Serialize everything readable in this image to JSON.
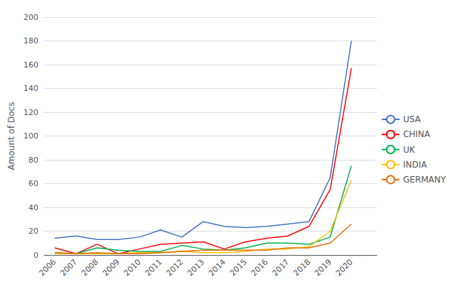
{
  "chart_data": {
    "type": "line",
    "ylabel": "Amount of Docs",
    "x": [
      2006,
      2007,
      2008,
      2009,
      2010,
      2011,
      2012,
      2013,
      2014,
      2015,
      2016,
      2017,
      2018,
      2019,
      2020
    ],
    "series": [
      {
        "name": "USA",
        "color": "#4472C4",
        "values": [
          14,
          16,
          13,
          13,
          15,
          21,
          15,
          28,
          24,
          23,
          24,
          26,
          28,
          65,
          180
        ]
      },
      {
        "name": "CHINA",
        "color": "#FF0000",
        "values": [
          6,
          1,
          9,
          1,
          5,
          9,
          10,
          11,
          5,
          11,
          14,
          16,
          24,
          55,
          157
        ]
      },
      {
        "name": "UK",
        "color": "#00B050",
        "values": [
          2,
          1,
          6,
          4,
          3,
          3,
          8,
          5,
          4,
          6,
          10,
          10,
          9,
          15,
          75
        ]
      },
      {
        "name": "INDIA",
        "color": "#FFC000",
        "values": [
          1,
          1,
          1,
          1,
          2,
          2,
          3,
          2,
          2,
          3,
          5,
          5,
          7,
          20,
          63
        ]
      },
      {
        "name": "GERMANY",
        "color": "#E36C09",
        "values": [
          2,
          1,
          2,
          1,
          1,
          2,
          3,
          4,
          4,
          4,
          4,
          6,
          6,
          10,
          26
        ]
      }
    ],
    "xlim": [
      2005.5,
      2021.2
    ],
    "xticks": [
      2006,
      2007,
      2008,
      2009,
      2010,
      2011,
      2012,
      2013,
      2014,
      2015,
      2016,
      2017,
      2018,
      2019,
      2020
    ],
    "ylim": [
      0,
      200
    ],
    "yticks": [
      0,
      20,
      40,
      60,
      80,
      100,
      120,
      140,
      160,
      180,
      200
    ],
    "grid": true,
    "legend": "right"
  }
}
